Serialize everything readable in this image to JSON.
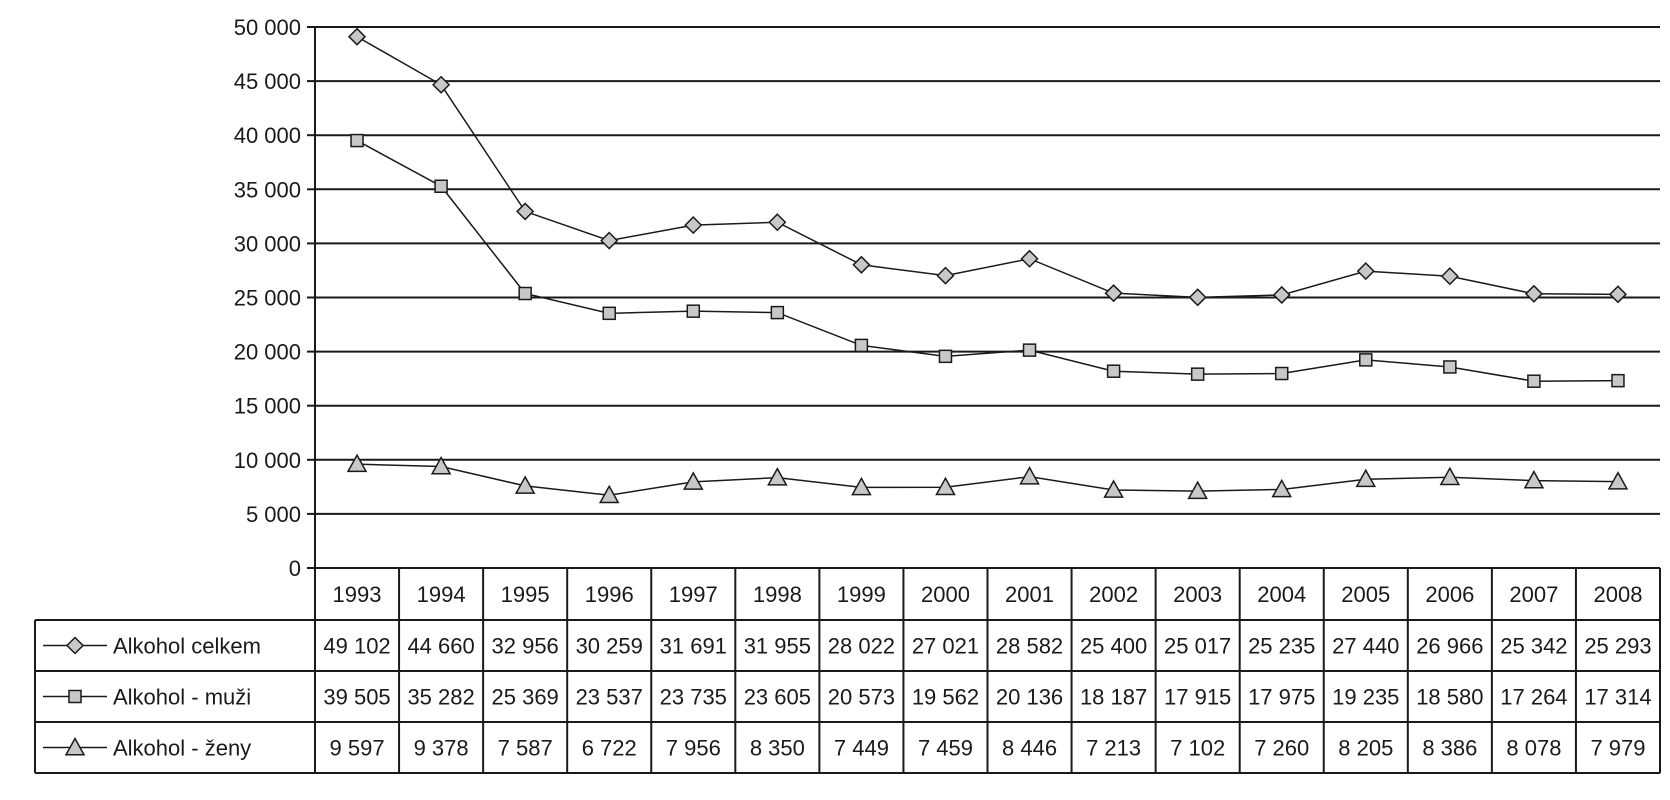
{
  "chart_data": {
    "type": "line",
    "categories": [
      "1993",
      "1994",
      "1995",
      "1996",
      "1997",
      "1998",
      "1999",
      "2000",
      "2001",
      "2002",
      "2003",
      "2004",
      "2005",
      "2006",
      "2007",
      "2008"
    ],
    "ylim": [
      0,
      50000
    ],
    "yticks": [
      0,
      5000,
      10000,
      15000,
      20000,
      25000,
      30000,
      35000,
      40000,
      45000,
      50000
    ],
    "ytick_labels": [
      "0",
      "5 000",
      "10 000",
      "15 000",
      "20 000",
      "25 000",
      "30 000",
      "35 000",
      "40 000",
      "45 000",
      "50 000"
    ],
    "grid": true,
    "legend": "data table below chart",
    "series": [
      {
        "name": "Alkohol celkem",
        "marker": "diamond",
        "values": [
          49102,
          44660,
          32956,
          30259,
          31691,
          31955,
          28022,
          27021,
          28582,
          25400,
          25017,
          25235,
          27440,
          26966,
          25342,
          25293
        ],
        "labels": [
          "49 102",
          "44 660",
          "32 956",
          "30 259",
          "31 691",
          "31 955",
          "28 022",
          "27 021",
          "28 582",
          "25 400",
          "25 017",
          "25 235",
          "27 440",
          "26 966",
          "25 342",
          "25 293"
        ]
      },
      {
        "name": "Alkohol - muži",
        "marker": "square",
        "values": [
          39505,
          35282,
          25369,
          23537,
          23735,
          23605,
          20573,
          19562,
          20136,
          18187,
          17915,
          17975,
          19235,
          18580,
          17264,
          17314
        ],
        "labels": [
          "39 505",
          "35 282",
          "25 369",
          "23 537",
          "23 735",
          "23 605",
          "20 573",
          "19 562",
          "20 136",
          "18 187",
          "17 915",
          "17 975",
          "19 235",
          "18 580",
          "17 264",
          "17 314"
        ]
      },
      {
        "name": "Alkohol - ženy",
        "marker": "triangle",
        "values": [
          9597,
          9378,
          7587,
          6722,
          7956,
          8350,
          7449,
          7459,
          8446,
          7213,
          7102,
          7260,
          8205,
          8386,
          8078,
          7979
        ],
        "labels": [
          "9 597",
          "9 378",
          "7 587",
          "6 722",
          "7 956",
          "8 350",
          "7 449",
          "7 459",
          "8 446",
          "7 213",
          "7 102",
          "7 260",
          "8 205",
          "8 386",
          "8 078",
          "7 979"
        ]
      }
    ],
    "colors": {
      "marker_fill": "#c8c8c8",
      "line": "#1a1a1a",
      "grid": "#1a1a1a"
    }
  }
}
